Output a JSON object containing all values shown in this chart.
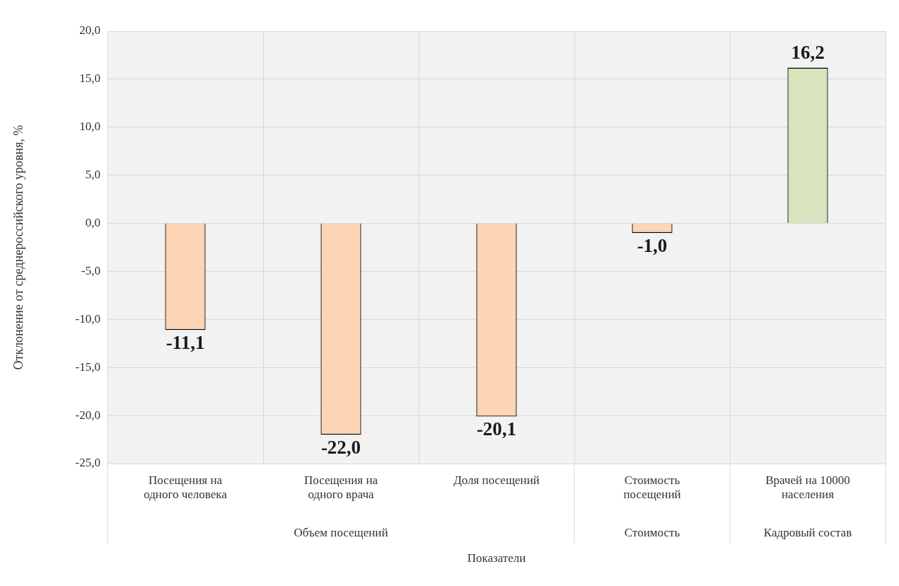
{
  "chart_data": {
    "type": "bar",
    "ylabel": "Отклонение от среднероссийского уровня, %",
    "xlabel": "Показатели",
    "categories": [
      "Посещения на одного человека",
      "Посещения на одного врача",
      "Доля посещений",
      "Стоимость посещений",
      "Врачей на 10000 населения"
    ],
    "values": [
      -11.1,
      -22.0,
      -20.1,
      -1.0,
      16.2
    ],
    "colors": [
      "#fbd5b5",
      "#fbd5b5",
      "#fbd5b5",
      "#fbd5b5",
      "#d7e4bd"
    ],
    "value_labels": [
      "-11,1",
      "-22,0",
      "-20,1",
      "-1,0",
      "16,2"
    ],
    "ylim": [
      -25,
      20
    ],
    "yticks": [
      {
        "value": -25,
        "label": "-25,0"
      },
      {
        "value": -20,
        "label": "-20,0"
      },
      {
        "value": -15,
        "label": "-15,0"
      },
      {
        "value": -10,
        "label": "-10,0"
      },
      {
        "value": -5,
        "label": "-5,0"
      },
      {
        "value": 0,
        "label": "0,0"
      },
      {
        "value": 5,
        "label": "5,0"
      },
      {
        "value": 10,
        "label": "10,0"
      },
      {
        "value": 15,
        "label": "15,0"
      },
      {
        "value": 20,
        "label": "20,0"
      }
    ],
    "grid": true,
    "annotations": [
      "Объем посещений",
      "Стоимость",
      "Кадровый состав"
    ]
  }
}
